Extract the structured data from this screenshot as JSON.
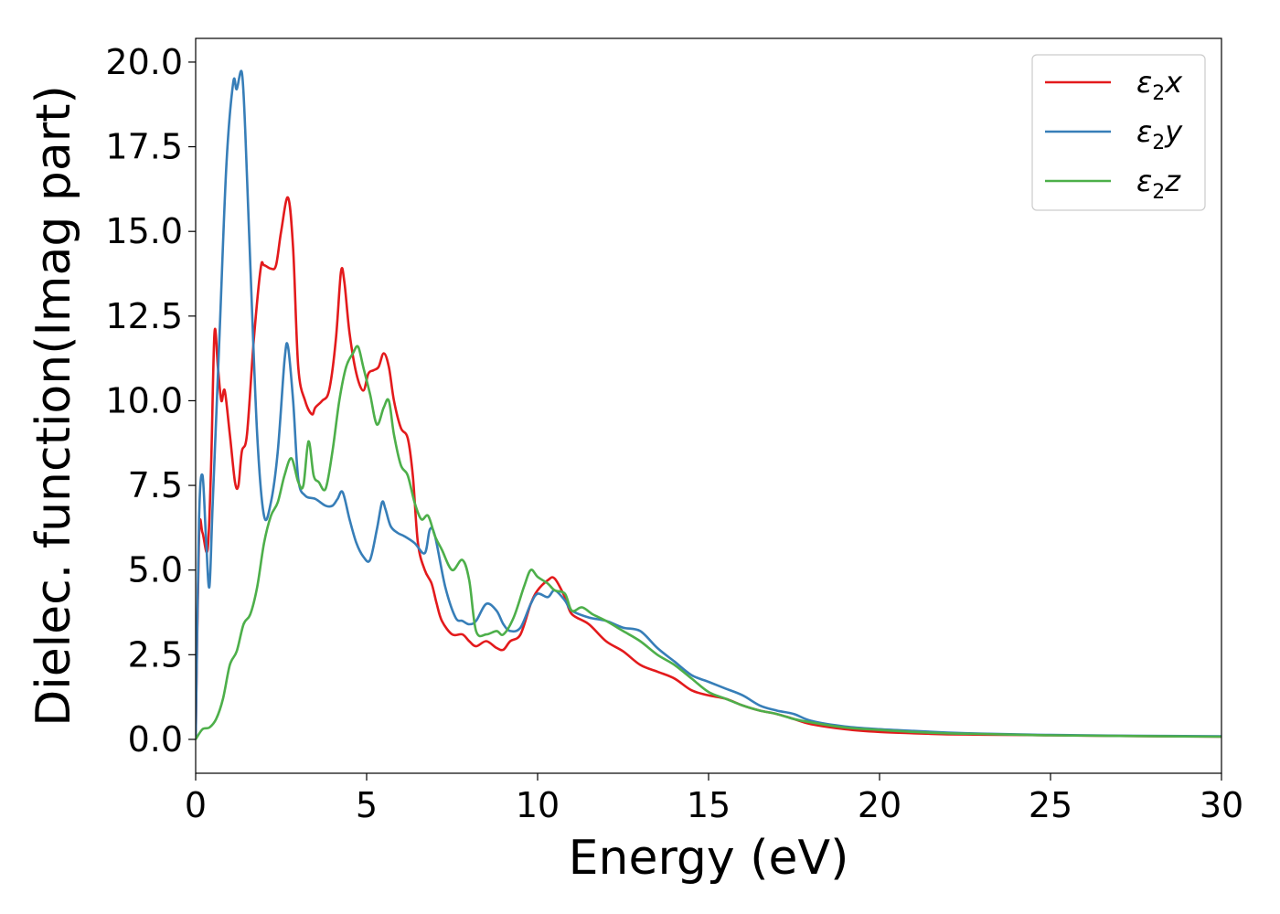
{
  "chart_data": {
    "type": "line",
    "xlabel": "Energy (eV)",
    "ylabel": "Dielec. function(Imag part)",
    "xlim": [
      0,
      30
    ],
    "ylim": [
      -1.0,
      20.7
    ],
    "xticks": [
      0,
      5,
      10,
      15,
      20,
      25,
      30
    ],
    "xtick_labels": [
      "0",
      "5",
      "10",
      "15",
      "20",
      "25",
      "30"
    ],
    "yticks": [
      0,
      2.5,
      5,
      7.5,
      10,
      12.5,
      15,
      17.5,
      20
    ],
    "ytick_labels": [
      "0.0",
      "2.5",
      "5.0",
      "7.5",
      "10.0",
      "12.5",
      "15.0",
      "17.5",
      "20.0"
    ],
    "grid": false,
    "legend": {
      "placement": "top-right"
    },
    "series": [
      {
        "name": "ε₂x",
        "legend": {
          "base": "ε",
          "sub": "2",
          "suffix": "x"
        },
        "color": "#e31a1c",
        "x": [
          0,
          0.1,
          0.2,
          0.35,
          0.45,
          0.55,
          0.65,
          0.75,
          0.85,
          1.0,
          1.15,
          1.25,
          1.35,
          1.5,
          1.7,
          1.9,
          2.0,
          2.2,
          2.35,
          2.5,
          2.7,
          2.85,
          3.0,
          3.2,
          3.4,
          3.5,
          3.7,
          3.9,
          4.1,
          4.25,
          4.35,
          4.5,
          4.7,
          4.9,
          5.05,
          5.2,
          5.35,
          5.5,
          5.65,
          5.8,
          6.0,
          6.2,
          6.35,
          6.5,
          6.7,
          6.9,
          7.05,
          7.2,
          7.5,
          7.8,
          8.0,
          8.2,
          8.5,
          8.8,
          9.0,
          9.2,
          9.5,
          9.8,
          10.0,
          10.3,
          10.5,
          10.8,
          11.0,
          11.5,
          12.0,
          12.5,
          13.0,
          13.5,
          14.0,
          14.5,
          15.0,
          15.5,
          16.0,
          16.5,
          17.0,
          17.5,
          18.0,
          19.0,
          20.0,
          21.0,
          22.0,
          23.0,
          24.0,
          25.0,
          27.0,
          30.0
        ],
        "y": [
          0.0,
          6.0,
          6.1,
          5.6,
          8.0,
          12.0,
          11.0,
          10.0,
          10.3,
          9.0,
          7.6,
          7.5,
          8.5,
          9.0,
          11.8,
          13.9,
          14.0,
          13.9,
          14.0,
          15.0,
          16.0,
          14.5,
          11.0,
          10.0,
          9.6,
          9.8,
          10.0,
          10.3,
          11.8,
          13.8,
          13.5,
          12.0,
          10.8,
          10.3,
          10.8,
          10.9,
          11.0,
          11.4,
          11.0,
          10.0,
          9.2,
          8.9,
          7.8,
          5.8,
          5.0,
          4.6,
          4.0,
          3.5,
          3.1,
          3.1,
          2.9,
          2.75,
          2.9,
          2.7,
          2.65,
          2.9,
          3.1,
          4.0,
          4.4,
          4.7,
          4.75,
          4.2,
          3.7,
          3.4,
          2.9,
          2.6,
          2.2,
          2.0,
          1.8,
          1.45,
          1.3,
          1.2,
          1.0,
          0.85,
          0.75,
          0.6,
          0.45,
          0.3,
          0.22,
          0.18,
          0.15,
          0.14,
          0.13,
          0.12,
          0.1,
          0.08
        ]
      },
      {
        "name": "ε₂y",
        "legend": {
          "base": "ε",
          "sub": "2",
          "suffix": "y"
        },
        "color": "#377eb8",
        "x": [
          0,
          0.1,
          0.2,
          0.3,
          0.4,
          0.5,
          0.7,
          0.9,
          1.1,
          1.2,
          1.35,
          1.45,
          1.6,
          1.8,
          2.0,
          2.2,
          2.4,
          2.6,
          2.7,
          2.85,
          3.0,
          3.2,
          3.5,
          3.8,
          4.0,
          4.15,
          4.3,
          4.5,
          4.7,
          4.9,
          5.1,
          5.3,
          5.45,
          5.55,
          5.7,
          5.9,
          6.1,
          6.4,
          6.7,
          6.85,
          7.0,
          7.3,
          7.6,
          7.8,
          8.0,
          8.2,
          8.5,
          8.8,
          9.0,
          9.2,
          9.5,
          9.8,
          10.0,
          10.3,
          10.5,
          10.8,
          11.0,
          11.5,
          12.0,
          12.5,
          13.0,
          13.5,
          14.0,
          14.5,
          15.0,
          15.5,
          16.0,
          16.5,
          17.0,
          17.5,
          18.0,
          19.0,
          20.0,
          21.0,
          22.0,
          23.0,
          24.0,
          25.0,
          27.0,
          30.0
        ],
        "y": [
          0.0,
          6.5,
          7.8,
          6.0,
          4.5,
          7.0,
          12.0,
          17.0,
          19.4,
          19.2,
          19.7,
          18.0,
          14.0,
          9.0,
          6.6,
          7.0,
          8.5,
          11.2,
          11.6,
          10.0,
          7.7,
          7.2,
          7.1,
          6.9,
          6.9,
          7.1,
          7.3,
          6.5,
          5.8,
          5.4,
          5.3,
          6.2,
          7.0,
          6.8,
          6.3,
          6.1,
          6.0,
          5.8,
          5.5,
          6.2,
          6.0,
          4.5,
          3.6,
          3.5,
          3.4,
          3.5,
          4.0,
          3.8,
          3.4,
          3.2,
          3.3,
          4.0,
          4.3,
          4.2,
          4.4,
          4.1,
          3.8,
          3.6,
          3.5,
          3.3,
          3.2,
          2.7,
          2.3,
          1.9,
          1.7,
          1.5,
          1.3,
          1.0,
          0.85,
          0.75,
          0.55,
          0.38,
          0.3,
          0.25,
          0.2,
          0.17,
          0.15,
          0.13,
          0.11,
          0.09
        ]
      },
      {
        "name": "ε₂z",
        "legend": {
          "base": "ε",
          "sub": "2",
          "suffix": "z"
        },
        "color": "#4daf4a",
        "x": [
          0,
          0.2,
          0.4,
          0.6,
          0.8,
          1.0,
          1.2,
          1.4,
          1.6,
          1.8,
          2.0,
          2.2,
          2.4,
          2.6,
          2.8,
          3.0,
          3.15,
          3.3,
          3.45,
          3.6,
          3.8,
          4.0,
          4.2,
          4.4,
          4.6,
          4.75,
          4.9,
          5.1,
          5.3,
          5.5,
          5.65,
          5.8,
          6.0,
          6.2,
          6.4,
          6.6,
          6.8,
          7.0,
          7.2,
          7.5,
          7.8,
          8.0,
          8.2,
          8.5,
          8.8,
          9.0,
          9.3,
          9.6,
          9.8,
          10.0,
          10.3,
          10.5,
          10.8,
          11.0,
          11.3,
          11.6,
          12.0,
          12.5,
          13.0,
          13.5,
          14.0,
          14.5,
          15.0,
          15.5,
          16.0,
          16.5,
          17.0,
          17.5,
          18.0,
          19.0,
          20.0,
          21.0,
          22.0,
          23.0,
          24.0,
          25.0,
          27.0,
          30.0
        ],
        "y": [
          0.0,
          0.3,
          0.35,
          0.6,
          1.2,
          2.2,
          2.6,
          3.4,
          3.7,
          4.5,
          5.8,
          6.6,
          7.0,
          7.8,
          8.3,
          7.6,
          7.5,
          8.8,
          7.8,
          7.6,
          7.4,
          8.5,
          10.0,
          11.0,
          11.4,
          11.6,
          11.0,
          10.2,
          9.3,
          9.8,
          10.0,
          9.0,
          8.1,
          7.8,
          7.0,
          6.5,
          6.6,
          6.0,
          5.6,
          5.0,
          5.3,
          4.7,
          3.2,
          3.1,
          3.2,
          3.1,
          3.6,
          4.5,
          5.0,
          4.8,
          4.6,
          4.4,
          4.3,
          3.8,
          3.9,
          3.7,
          3.5,
          3.2,
          2.9,
          2.5,
          2.2,
          1.8,
          1.4,
          1.2,
          1.0,
          0.85,
          0.75,
          0.6,
          0.5,
          0.35,
          0.28,
          0.22,
          0.18,
          0.16,
          0.14,
          0.12,
          0.1,
          0.08
        ]
      }
    ]
  }
}
